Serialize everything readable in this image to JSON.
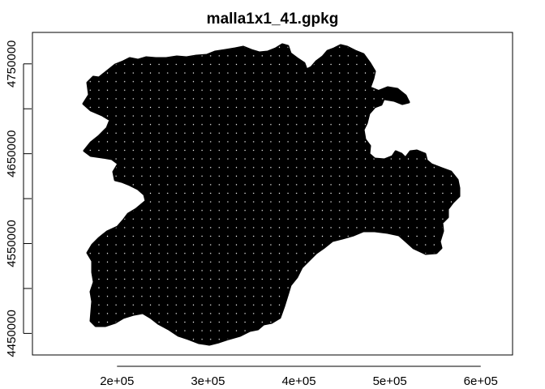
{
  "chart_data": {
    "type": "map",
    "title": "malla1x1_41.gpkg",
    "xlabel": "",
    "ylabel": "",
    "xlim": [
      107000,
      635000
    ],
    "ylim": [
      4426000,
      4785000
    ],
    "x_ticks": [
      200000,
      300000,
      400000,
      500000,
      600000
    ],
    "x_tick_labels": [
      "2e+05",
      "3e+05",
      "4e+05",
      "5e+05",
      "6e+05"
    ],
    "y_ticks": [
      4450000,
      4500000,
      4550000,
      4600000,
      4650000,
      4700000,
      4750000
    ],
    "y_tick_labels": [
      "4450000",
      "",
      "4550000",
      "",
      "4650000",
      "",
      "4750000"
    ],
    "grid": false,
    "fill_color": "#000000",
    "point_color": "#ffffff",
    "grid_point_spacing": 1000
  }
}
